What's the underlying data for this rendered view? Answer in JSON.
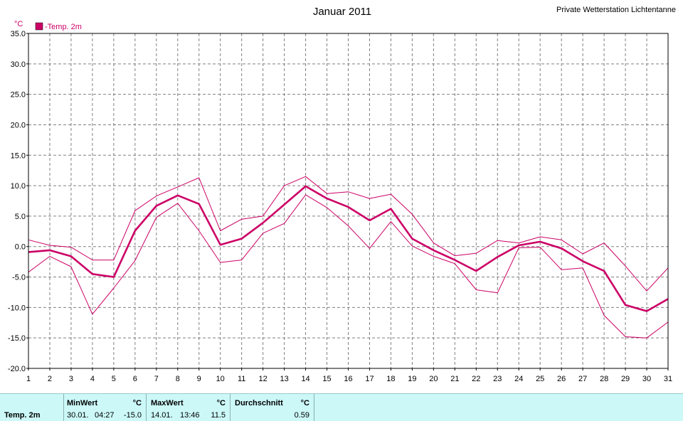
{
  "header": {
    "title": "Januar 2011",
    "station": "Private Wetterstation Lichtentanne"
  },
  "colors": {
    "series": "#cc0066",
    "grid": "#808080",
    "panel_bg": "#ccf8f8"
  },
  "chart_data": {
    "type": "line",
    "title": "Januar 2011",
    "ylabel": "°C",
    "xlabel": "",
    "ylim": [
      -20,
      35
    ],
    "yticks": [
      "35.0",
      "30.0",
      "25.0",
      "20.0",
      "15.0",
      "10.0",
      "5.0",
      "0.0",
      "-5.0",
      "-10.0",
      "-15.0",
      "-20.0"
    ],
    "grid": true,
    "legend": {
      "label": "-Temp. 2m",
      "placement": "top-left"
    },
    "x": [
      1,
      2,
      3,
      4,
      5,
      6,
      7,
      8,
      9,
      10,
      11,
      12,
      13,
      14,
      15,
      16,
      17,
      18,
      19,
      20,
      21,
      22,
      23,
      24,
      25,
      26,
      27,
      28,
      29,
      30,
      31
    ],
    "series": [
      {
        "name": "-Temp. 2m",
        "role": "mean",
        "values": [
          -0.9,
          -0.6,
          -1.6,
          -4.5,
          -5.0,
          2.6,
          6.7,
          8.4,
          7.0,
          0.3,
          1.3,
          3.9,
          6.9,
          9.9,
          7.9,
          6.5,
          4.3,
          6.2,
          1.3,
          -0.6,
          -2.2,
          -4.0,
          -1.7,
          0.2,
          0.8,
          -0.3,
          -2.4,
          -4.0,
          -9.6,
          -10.6,
          -8.6
        ]
      },
      {
        "role": "max",
        "values": [
          1.1,
          0.2,
          -0.1,
          -2.2,
          -2.2,
          5.9,
          8.3,
          9.8,
          11.3,
          2.6,
          4.5,
          5.0,
          10.0,
          11.5,
          8.7,
          9.0,
          7.9,
          8.6,
          5.3,
          0.6,
          -1.5,
          -1.1,
          1.0,
          0.6,
          1.6,
          1.1,
          -1.2,
          0.6,
          -3.2,
          -7.3,
          -3.5
        ]
      },
      {
        "role": "min",
        "values": [
          -4.2,
          -1.6,
          -3.3,
          -11.1,
          -6.8,
          -2.3,
          4.8,
          7.1,
          2.6,
          -2.6,
          -2.2,
          2.2,
          3.8,
          8.5,
          6.4,
          3.4,
          -0.3,
          4.1,
          0.1,
          -1.6,
          -2.8,
          -7.1,
          -7.6,
          -0.2,
          -0.1,
          -3.8,
          -3.5,
          -11.3,
          -14.8,
          -15.0,
          -12.4
        ]
      }
    ]
  },
  "stats": {
    "row_label": "Temp. 2m",
    "min": {
      "header": "MinWert",
      "unit": "°C",
      "date": "30.01.",
      "time": "04:27",
      "value": "-15.0"
    },
    "max": {
      "header": "MaxWert",
      "unit": "°C",
      "date": "14.01.",
      "time": "13:46",
      "value": "11.5"
    },
    "avg": {
      "header": "Durchschnitt",
      "unit": "°C",
      "value": "0.59"
    }
  }
}
